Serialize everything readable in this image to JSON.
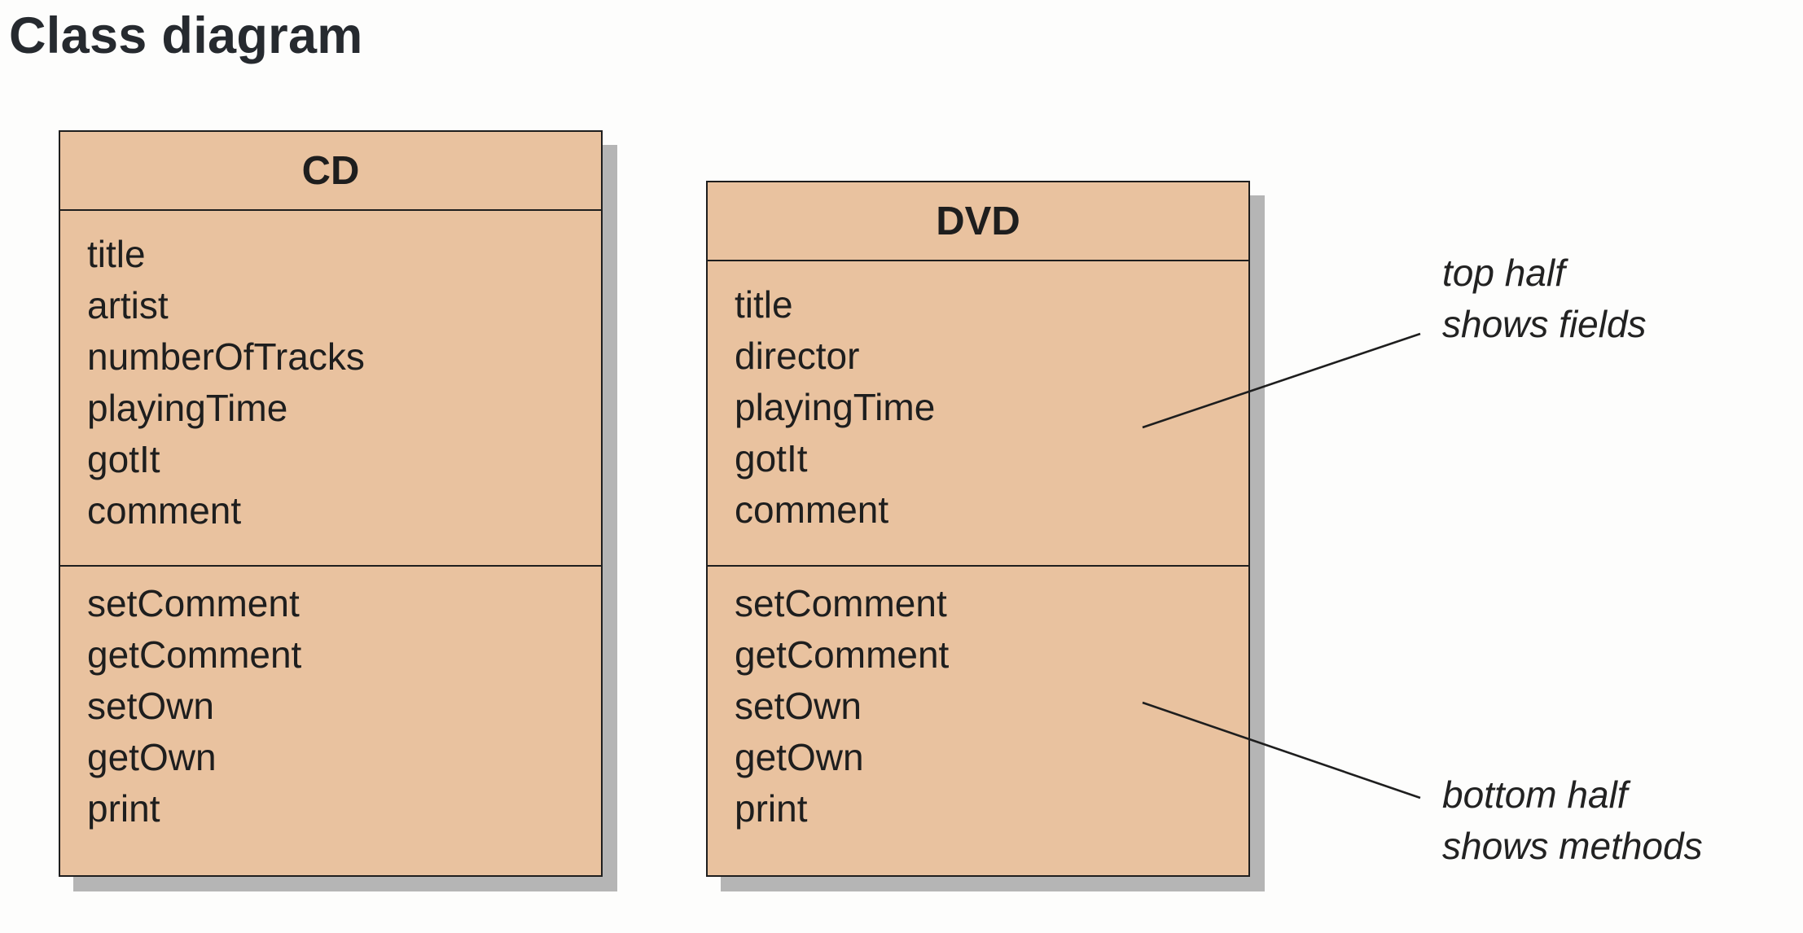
{
  "title": "Class diagram",
  "colors": {
    "class_fill": "#e9c29f",
    "class_border": "#1e1e1e",
    "shadow": "#b5b5b5",
    "background": "#fdfdfc"
  },
  "classes": [
    {
      "name": "CD",
      "fields": [
        "title",
        "artist",
        "numberOfTracks",
        "playingTime",
        "gotIt",
        "comment"
      ],
      "methods": [
        "setComment",
        "getComment",
        "setOwn",
        "getOwn",
        "print"
      ]
    },
    {
      "name": "DVD",
      "fields": [
        "title",
        "director",
        "playingTime",
        "gotIt",
        "comment"
      ],
      "methods": [
        "setComment",
        "getComment",
        "setOwn",
        "getOwn",
        "print"
      ]
    }
  ],
  "annotations": {
    "fields_note": {
      "line1": "top half",
      "line2": "shows fields"
    },
    "methods_note": {
      "line1": "bottom half",
      "line2": "shows methods"
    }
  }
}
